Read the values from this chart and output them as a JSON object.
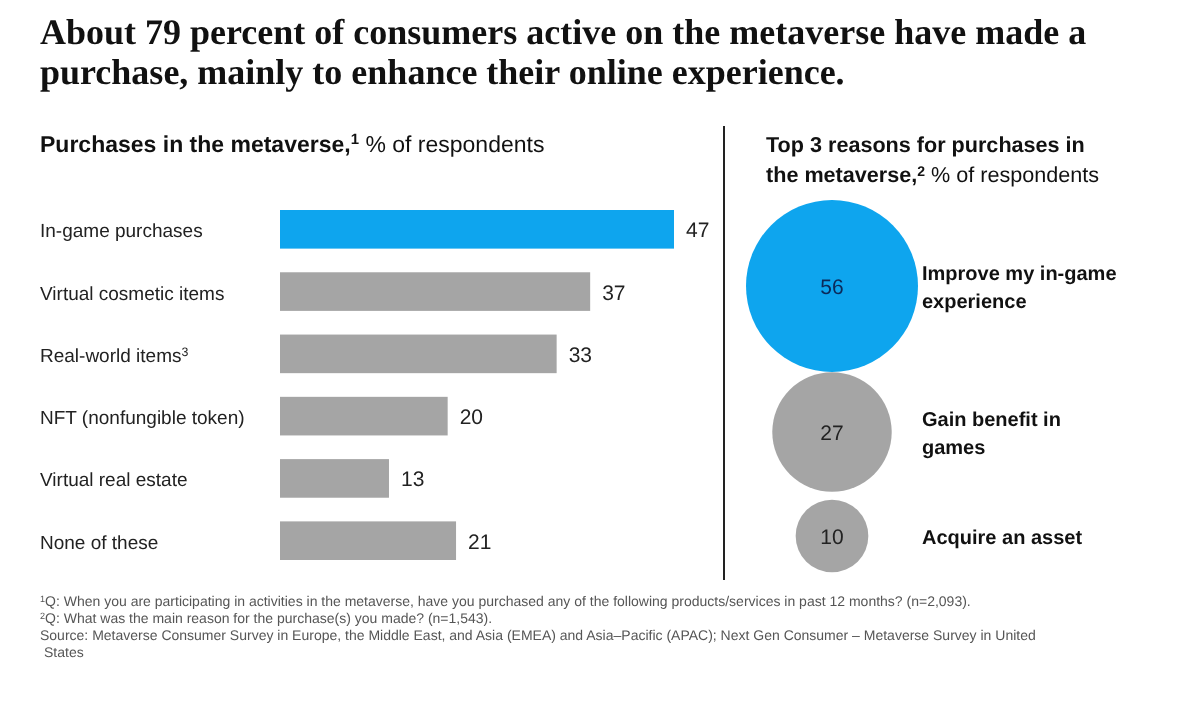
{
  "chart_data": [
    {
      "type": "bar",
      "orientation": "horizontal",
      "title": "About 79 percent of consumers active on the metaverse have made a purchase, mainly to enhance their online experience.",
      "subtitle": "Purchases in the metaverse,$^{1}$ % of respondents",
      "categories": [
        "In-game purchases",
        "Virtual cosmetic items",
        "Real-world items$^{3}$",
        "NFT (nonfungible token)",
        "Virtual real estate",
        "None of these"
      ],
      "values": [
        47,
        37,
        33,
        20,
        13,
        21
      ],
      "colors": [
        "#0ea5ee",
        "#a5a5a5",
        "#a5a5a5",
        "#a5a5a5",
        "#a5a5a5",
        "#a5a5a5"
      ],
      "data_labels": true
    },
    {
      "type": "other",
      "subtitle": "Top 3 reasons for purchases in the metaverse,$^{2}$ % of respondents",
      "categories": [
        "Improve my in-game experience",
        "Gain benefit in games",
        "Acquire an asset"
      ],
      "values": [
        56,
        27,
        10
      ],
      "data_labels": true,
      "colors": [
        "#0ea5ee",
        "#a5a5a5",
        "#a5a5a5"
      ],
      "annotations": [
        "$^{1}$Q: When you are participating in activities in the metaverse, have you purchased any of the following products/services in past 12 months? (n=2,093).",
        "$^{2}$Q: What was the main reason for the purchase(s) you made? (n=1,543).",
        "Source: Metaverse Consumer Survey in Europe, the Middle East, and Asia (EMEA) and Asia–Pacific (APAC); Next Gen Consumer – Metaverse Survey in United States"
      ]
    }
  ]
}
